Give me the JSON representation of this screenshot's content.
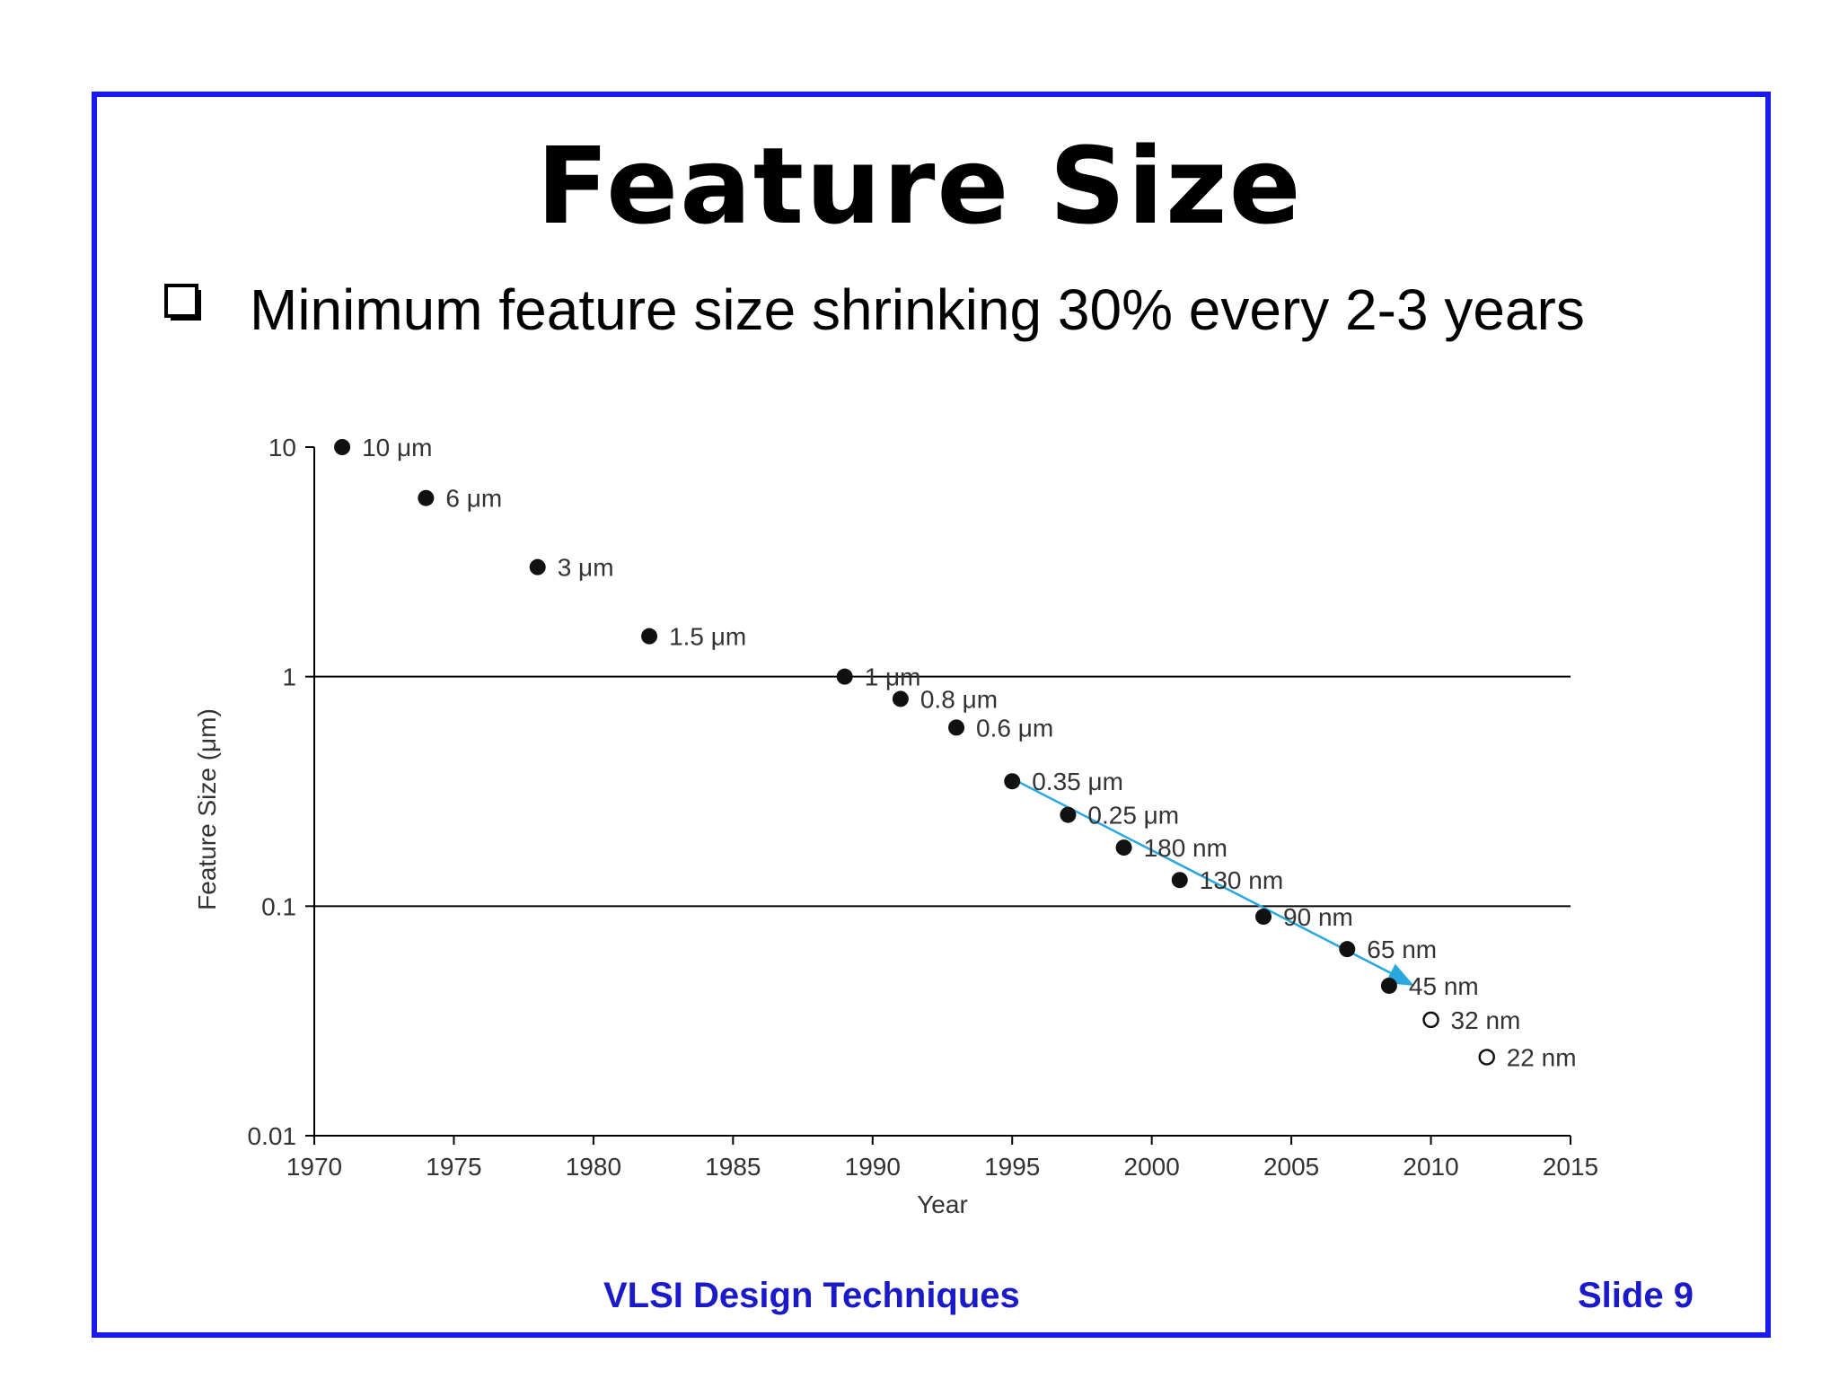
{
  "slide": {
    "title": "Feature Size",
    "bullet": "Minimum feature size shrinking 30% every 2-3 years",
    "footer_center": "VLSI Design Techniques",
    "footer_right": "Slide 9",
    "frame_color": "#1a1aee",
    "footer_color": "#1a1ac8"
  },
  "chart_data": {
    "type": "scatter",
    "xlabel": "Year",
    "ylabel": "Feature Size (μm)",
    "xlim": [
      1970,
      2015
    ],
    "ylim": [
      0.01,
      10
    ],
    "yscale": "log",
    "x_ticks": [
      "1970",
      "1975",
      "1980",
      "1985",
      "1990",
      "1995",
      "2000",
      "2005",
      "2010",
      "2015"
    ],
    "y_ticks": [
      "10",
      "1",
      "0.1",
      "0.01"
    ],
    "gridlines_y": [
      1,
      0.1
    ],
    "points": [
      {
        "year": 1971,
        "size_um": 10,
        "label": "10 μm",
        "filled": true
      },
      {
        "year": 1974,
        "size_um": 6,
        "label": "6 μm",
        "filled": true
      },
      {
        "year": 1978,
        "size_um": 3,
        "label": "3 μm",
        "filled": true
      },
      {
        "year": 1982,
        "size_um": 1.5,
        "label": "1.5 μm",
        "filled": true
      },
      {
        "year": 1989,
        "size_um": 1,
        "label": "1 μm",
        "filled": true
      },
      {
        "year": 1991,
        "size_um": 0.8,
        "label": "0.8 μm",
        "filled": true
      },
      {
        "year": 1993,
        "size_um": 0.6,
        "label": "0.6 μm",
        "filled": true
      },
      {
        "year": 1995,
        "size_um": 0.35,
        "label": "0.35 μm",
        "filled": true
      },
      {
        "year": 1997,
        "size_um": 0.25,
        "label": "0.25 μm",
        "filled": true
      },
      {
        "year": 1999,
        "size_um": 0.18,
        "label": "180 nm",
        "filled": true
      },
      {
        "year": 2001,
        "size_um": 0.13,
        "label": "130 nm",
        "filled": true
      },
      {
        "year": 2004,
        "size_um": 0.09,
        "label": "90 nm",
        "filled": true
      },
      {
        "year": 2007,
        "size_um": 0.065,
        "label": "65 nm",
        "filled": true
      },
      {
        "year": 2008.5,
        "size_um": 0.045,
        "label": "45 nm",
        "filled": true
      },
      {
        "year": 2010,
        "size_um": 0.032,
        "label": "32 nm",
        "filled": false
      },
      {
        "year": 2012,
        "size_um": 0.022,
        "label": "22 nm",
        "filled": false
      }
    ],
    "trend_arrow": {
      "from": {
        "year": 1994.8,
        "size_um": 0.37
      },
      "to": {
        "year": 2009.4,
        "size_um": 0.045
      },
      "color": "#29a8e0"
    }
  }
}
